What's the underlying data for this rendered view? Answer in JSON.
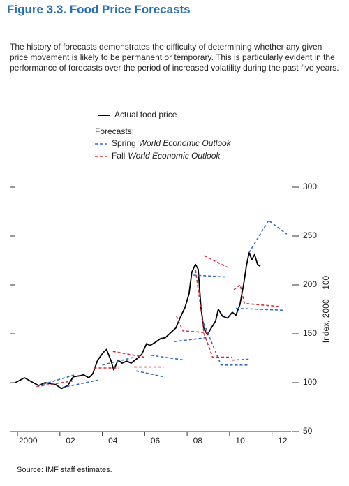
{
  "chart_data": {
    "type": "line",
    "title": "Figure 3.3.  Food Price Forecasts",
    "subtitle": "The history of forecasts demonstrates the difficulty of determining whether any given price movement is likely to be permanent or temporary. This is particularly evident in the performance of forecasts over the period of increased volatility during the past five years.",
    "y_label": "Index, 2000 = 100",
    "source": "Source: IMF staff estimates.",
    "legend_title": "Forecasts:",
    "xlim": [
      1999.9,
      2012.9
    ],
    "ylim": [
      50,
      300
    ],
    "yticks": [
      50,
      100,
      150,
      200,
      250,
      300
    ],
    "xticks": [
      {
        "value": 2000,
        "label": "2000"
      },
      {
        "value": 2002,
        "label": "02"
      },
      {
        "value": 2004,
        "label": "04"
      },
      {
        "value": 2006,
        "label": "06"
      },
      {
        "value": 2008,
        "label": "08"
      },
      {
        "value": 2010,
        "label": "10"
      },
      {
        "value": 2012,
        "label": "12"
      }
    ],
    "series": [
      {
        "name": [
          "Actual food price"
        ],
        "color": "#000000",
        "dashed": false,
        "segments": [
          {
            "x": [
              1999.9,
              2000.33,
              2000.66,
              2001.0,
              2001.3,
              2001.55,
              2001.8,
              2002.07,
              2002.37,
              2002.63,
              2002.93,
              2003.12,
              2003.36,
              2003.55,
              2003.78,
              2004.05,
              2004.2,
              2004.4,
              2004.54,
              2004.74,
              2004.93,
              2005.16,
              2005.36,
              2005.6,
              2005.86,
              2006.09,
              2006.25,
              2006.48,
              2006.74,
              2006.97,
              2007.17,
              2007.47,
              2007.66,
              2007.9,
              2008.09,
              2008.22,
              2008.39,
              2008.52,
              2008.65,
              2008.78,
              2008.95,
              2009.14,
              2009.34,
              2009.47,
              2009.67,
              2009.9,
              2010.13,
              2010.3,
              2010.49,
              2010.66,
              2010.79,
              2010.92,
              2011.05,
              2011.18,
              2011.32,
              2011.45
            ],
            "values": [
              100,
              105,
              101,
              97,
              100,
              99,
              98,
              94,
              97,
              106,
              107,
              108,
              105,
              109,
              123,
              131,
              134,
              123,
              113,
              123,
              120,
              122,
              120,
              124,
              129,
              140,
              138,
              141,
              145,
              146,
              150,
              156,
              166,
              177,
              191,
              213,
              221,
              216,
              177,
              156,
              149,
              156,
              163,
              175,
              168,
              166,
              172,
              169,
              180,
              200,
              219,
              233,
              226,
              231,
              221,
              219
            ]
          }
        ]
      },
      {
        "name": [
          "Spring",
          "World Economic Outlook"
        ],
        "color": "#2f6fc0",
        "dashed": true,
        "segments": [
          {
            "x": [
              2001.0,
              2002.7
            ],
            "values": [
              97,
              108
            ]
          },
          {
            "x": [
              2002.1,
              2003.9
            ],
            "values": [
              95,
              103
            ]
          },
          {
            "x": [
              2004.0,
              2005.5
            ],
            "values": [
              118,
              126
            ]
          },
          {
            "x": [
              2005.6,
              2006.9
            ],
            "values": [
              112,
              106
            ]
          },
          {
            "x": [
              2006.3,
              2007.9
            ],
            "values": [
              128,
              123
            ]
          },
          {
            "x": [
              2007.4,
              2008.9
            ],
            "values": [
              142,
              146
            ]
          },
          {
            "x": [
              2008.3,
              2009.9
            ],
            "values": [
              210,
              208
            ]
          },
          {
            "x": [
              2008.7,
              2009.6,
              2010.9
            ],
            "values": [
              165,
              118,
              118
            ]
          },
          {
            "x": [
              2010.3,
              2012.6
            ],
            "values": [
              176,
              174
            ]
          },
          {
            "x": [
              2010.92,
              2011.84,
              2012.7
            ],
            "values": [
              233,
              266,
              252
            ]
          }
        ]
      },
      {
        "name": [
          "Fall",
          "World Economic Outlook"
        ],
        "color": "#d0313d",
        "dashed": true,
        "segments": [
          {
            "x": [
              2000.9,
              2002.7
            ],
            "values": [
              96,
              102
            ]
          },
          {
            "x": [
              2003.6,
              2004.8
            ],
            "values": [
              115,
              115
            ]
          },
          {
            "x": [
              2004.5,
              2006.0
            ],
            "values": [
              132,
              126
            ]
          },
          {
            "x": [
              2005.5,
              2006.9
            ],
            "values": [
              116,
              116
            ]
          },
          {
            "x": [
              2007.5,
              2007.8,
              2009.0
            ],
            "values": [
              168,
              153,
              151
            ]
          },
          {
            "x": [
              2008.4,
              2008.8,
              2009.2,
              2010.1
            ],
            "values": [
              215,
              150,
              126,
              126
            ]
          },
          {
            "x": [
              2008.8,
              2009.9
            ],
            "values": [
              230,
              218
            ]
          },
          {
            "x": [
              2010.1,
              2010.9
            ],
            "values": [
              123,
              124
            ]
          },
          {
            "x": [
              2010.2,
              2010.5,
              2010.7,
              2012.3
            ],
            "values": [
              195,
              200,
              181,
              178
            ]
          }
        ]
      }
    ]
  }
}
